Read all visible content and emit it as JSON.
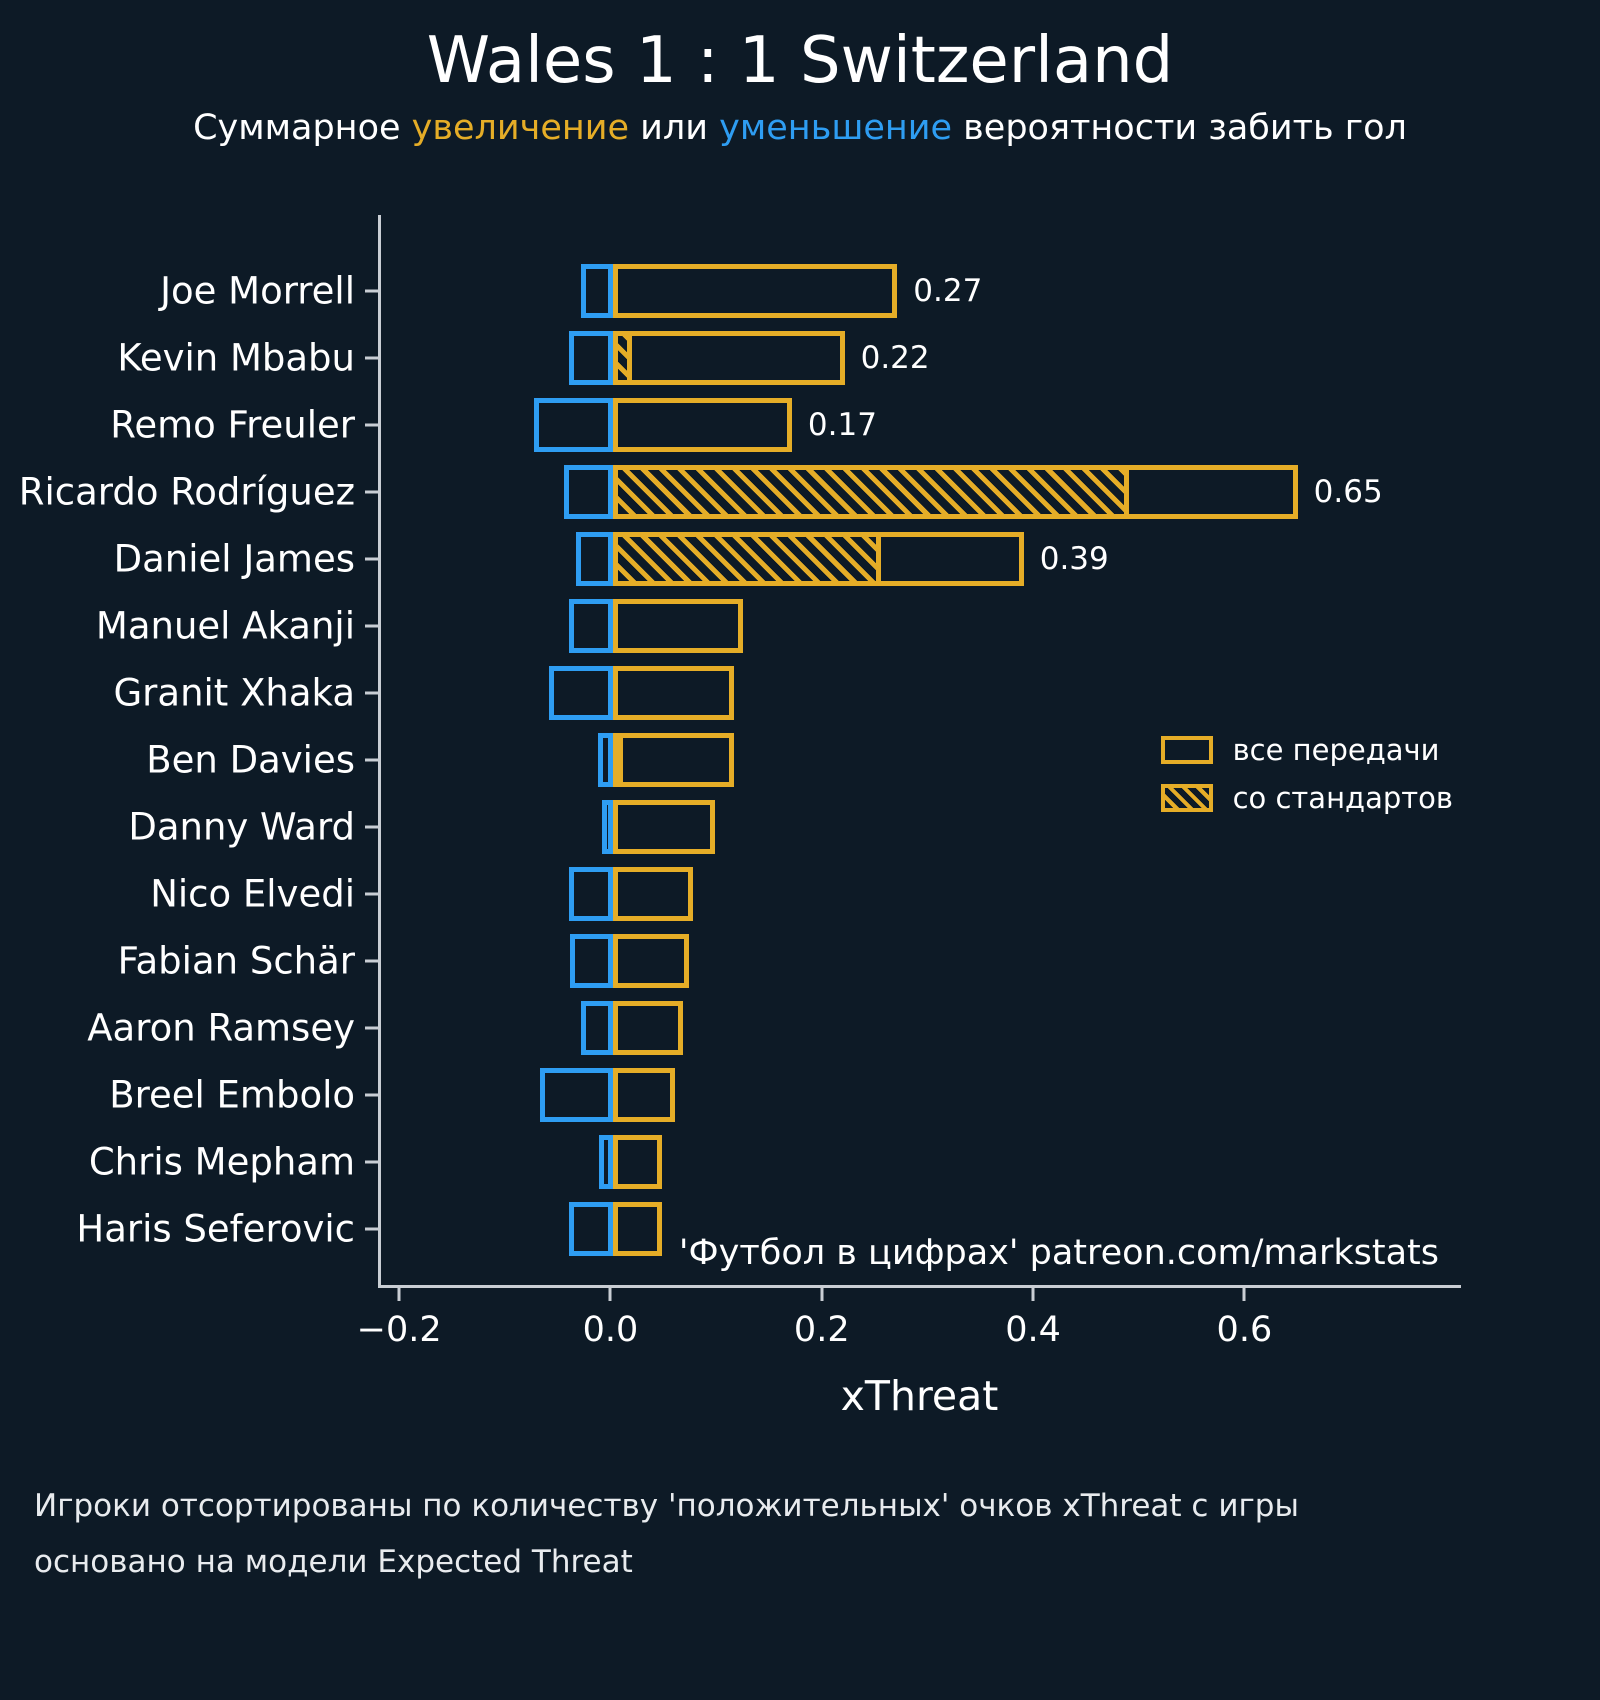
{
  "title": "Wales 1 : 1 Switzerland",
  "subtitle": {
    "part1": "Суммарное ",
    "increase_word": "увеличение",
    "part2": " или ",
    "decrease_word": "уменьшение",
    "part3": " вероятности забить гол"
  },
  "colors": {
    "background": "#0d1a26",
    "positive": "#e5ad27",
    "negative": "#2e9df2",
    "axis": "#c9ced4",
    "text": "#ffffff"
  },
  "legend": {
    "all_passes": "все передачи",
    "set_pieces": "со стандартов"
  },
  "watermark": "'Футбол в цифрах' patreon.com/markstats",
  "xlabel": "xThreat",
  "footer_lines": {
    "line1": "Игроки отсортированы по количеству 'положительных' очков xThreat с игры",
    "line2": "основано на модели Expected Threat"
  },
  "chart_data": {
    "type": "bar",
    "orientation": "horizontal",
    "title": "Wales 1 : 1 Switzerland",
    "xlabel": "xThreat",
    "xlim": [
      -0.22,
      0.805
    ],
    "grid": false,
    "legend_position": "right-middle",
    "xticks": [
      {
        "value": -0.2,
        "label": "−0.2"
      },
      {
        "value": 0.0,
        "label": "0.0"
      },
      {
        "value": 0.2,
        "label": "0.2"
      },
      {
        "value": 0.4,
        "label": "0.4"
      },
      {
        "value": 0.6,
        "label": "0.6"
      }
    ],
    "series_legend": [
      "все передачи",
      "со стандартов"
    ],
    "players": [
      {
        "name": "Joe Morrell",
        "positive": 0.27,
        "set_pieces": 0,
        "negative": -0.03,
        "label": "0.27"
      },
      {
        "name": "Kevin Mbabu",
        "positive": 0.22,
        "set_pieces": 0.018,
        "negative": -0.042,
        "label": "0.22"
      },
      {
        "name": "Remo Freuler",
        "positive": 0.17,
        "set_pieces": 0,
        "negative": -0.075,
        "label": "0.17"
      },
      {
        "name": "Ricardo Rodríguez",
        "positive": 0.65,
        "set_pieces": 0.49,
        "negative": -0.046,
        "label": "0.65"
      },
      {
        "name": "Daniel James",
        "positive": 0.39,
        "set_pieces": 0.255,
        "negative": -0.035,
        "label": "0.39"
      },
      {
        "name": "Manuel Akanji",
        "positive": 0.124,
        "set_pieces": 0,
        "negative": -0.042,
        "label": ""
      },
      {
        "name": "Granit Xhaka",
        "positive": 0.115,
        "set_pieces": 0,
        "negative": -0.061,
        "label": ""
      },
      {
        "name": "Ben Davies",
        "positive": 0.115,
        "set_pieces": 0.005,
        "negative": -0.014,
        "label": ""
      },
      {
        "name": "Danny Ward",
        "positive": 0.097,
        "set_pieces": 0,
        "negative": -0.01,
        "label": ""
      },
      {
        "name": "Nico Elvedi",
        "positive": 0.076,
        "set_pieces": 0,
        "negative": -0.042,
        "label": ""
      },
      {
        "name": "Fabian Schär",
        "positive": 0.072,
        "set_pieces": 0,
        "negative": -0.041,
        "label": ""
      },
      {
        "name": "Aaron Ramsey",
        "positive": 0.067,
        "set_pieces": 0,
        "negative": -0.03,
        "label": ""
      },
      {
        "name": "Breel Embolo",
        "positive": 0.059,
        "set_pieces": 0,
        "negative": -0.069,
        "label": ""
      },
      {
        "name": "Chris Mepham",
        "positive": 0.047,
        "set_pieces": 0,
        "negative": -0.013,
        "label": ""
      },
      {
        "name": "Haris Seferovic",
        "positive": 0.047,
        "set_pieces": 0,
        "negative": -0.042,
        "label": ""
      }
    ]
  }
}
